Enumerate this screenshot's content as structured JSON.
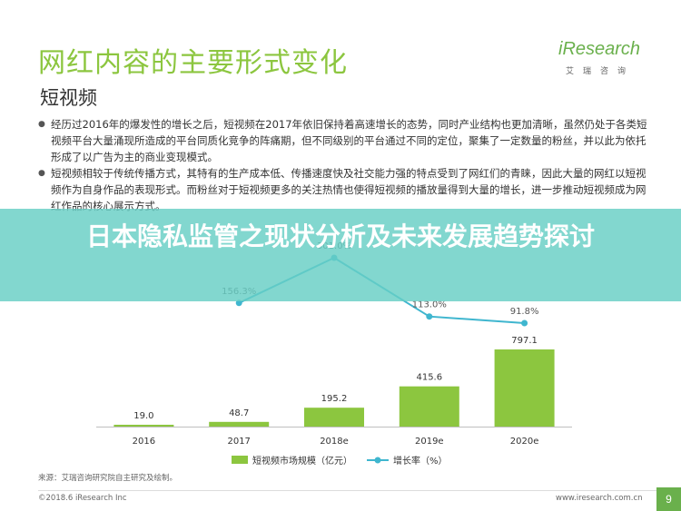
{
  "slide": {
    "title": "网红内容的主要形式变化",
    "subtitle": "短视频",
    "logo_word": "iResearch",
    "logo_sub": "艾瑞咨询",
    "bullets": [
      "经历过2016年的爆发性的增长之后，短视频在2017年依旧保持着高速增长的态势，同时产业结构也更加清晰，虽然仍处于各类短视频平台大量涌现所造成的平台同质化竞争的阵痛期，但不同级别的平台通过不同的定位，聚集了一定数量的粉丝，并以此为依托形成了以广告为主的商业变现模式。",
      "短视频相较于传统传播方式，其特有的生产成本低、传播速度快及社交能力强的特点受到了网红们的青睐，因此大量的网红以短视频作为自身作品的表现形式。而粉丝对于短视频更多的关注热情也使得短视频的播放量得到大量的增长，进一步推动短视频成为网红作品的核心展示方式。"
    ],
    "banner": "日本隐私监管之现状分析及未来发展趋势探讨",
    "source": "来源：艾瑞咨询研究院自主研究及绘制。",
    "footer_left": "©2018.6 iResearch Inc",
    "footer_right": "www.iresearch.com.cn",
    "page_number": "9"
  },
  "colors": {
    "bar": "#8cc63f",
    "line": "#3fb6cf",
    "title": "#8cc63f",
    "banner": "#67cec4"
  },
  "chart_data": {
    "type": "bar",
    "categories": [
      "2016",
      "2017",
      "2018e",
      "2019e",
      "2020e"
    ],
    "series": [
      {
        "name": "短视频市场规模（亿元）",
        "kind": "bar",
        "values": [
          19.0,
          48.7,
          195.2,
          415.6,
          797.1
        ],
        "labels": [
          "19.0",
          "48.7",
          "195.2",
          "415.6",
          "797.1"
        ]
      },
      {
        "name": "增长率（%）",
        "kind": "line",
        "values": [
          null,
          156.3,
          301.0,
          113.0,
          91.8
        ],
        "labels": [
          "",
          "156.3%",
          "301.0%",
          "113.0%",
          "91.8%"
        ]
      }
    ],
    "legend_position": "bottom"
  }
}
